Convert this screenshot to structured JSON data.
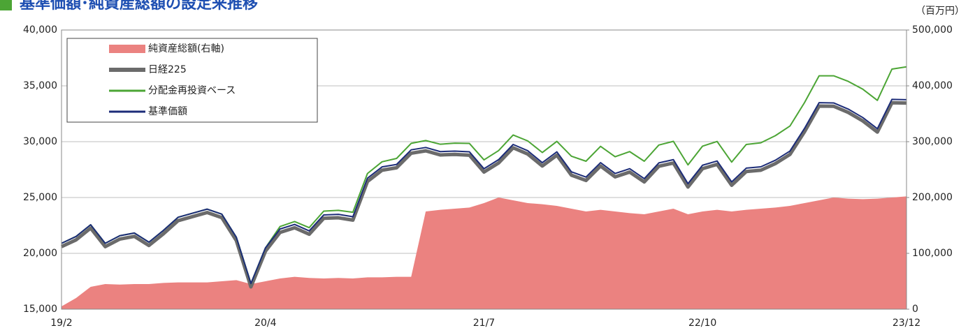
{
  "chart_data": {
    "type": "line",
    "title": "基準価額･純資産総額の設定来推移",
    "y2_label": "（百万円）",
    "categories": [
      "19/2",
      null,
      null,
      null,
      null,
      null,
      null,
      null,
      null,
      null,
      null,
      null,
      null,
      null,
      "20/4",
      null,
      null,
      null,
      null,
      null,
      null,
      null,
      null,
      null,
      null,
      null,
      null,
      null,
      null,
      "21/7",
      null,
      null,
      null,
      null,
      null,
      null,
      null,
      null,
      null,
      null,
      null,
      null,
      null,
      null,
      "22/10",
      null,
      null,
      null,
      null,
      null,
      null,
      null,
      null,
      null,
      null,
      null,
      null,
      null,
      "23/12"
    ],
    "ylim": [
      15000,
      40000
    ],
    "yticks": [
      {
        "value": 15000,
        "label": "15,000"
      },
      {
        "value": 20000,
        "label": "20,000"
      },
      {
        "value": 25000,
        "label": "25,000"
      },
      {
        "value": 30000,
        "label": "30,000"
      },
      {
        "value": 35000,
        "label": "35,000"
      },
      {
        "value": 40000,
        "label": "40,000"
      }
    ],
    "y2lim": [
      0,
      500000
    ],
    "y2ticks": [
      0,
      {
        "value": 100000,
        "label": "100,000"
      },
      {
        "value": 200000,
        "label": "200,000"
      },
      {
        "value": 300000,
        "label": "300,000"
      },
      {
        "value": 400000,
        "label": "400,000"
      },
      {
        "value": 500000,
        "label": "500,000"
      }
    ],
    "grid": true,
    "legend": "upper left",
    "series": [
      {
        "name": "純資産総額(右軸)",
        "type": "area",
        "axis": "y2",
        "color": "#eb8280",
        "values": [
          5000,
          20000,
          40000,
          45000,
          44000,
          45000,
          45000,
          47000,
          48000,
          48000,
          48000,
          50000,
          52000,
          45000,
          50000,
          55000,
          58000,
          56000,
          55000,
          56000,
          55000,
          57000,
          57000,
          58000,
          58000,
          175000,
          178000,
          180000,
          182000,
          190000,
          200000,
          195000,
          190000,
          188000,
          185000,
          180000,
          175000,
          178000,
          175000,
          172000,
          170000,
          175000,
          180000,
          170000,
          175000,
          178000,
          175000,
          178000,
          180000,
          182000,
          185000,
          190000,
          195000,
          200000,
          198000,
          197000,
          198000,
          200000,
          202000
        ]
      },
      {
        "name": "日経225",
        "color": "#6b6b6b",
        "width": 5,
        "values": [
          20600,
          21206,
          22259,
          20601,
          21276,
          21522,
          20704,
          21756,
          22927,
          23294,
          23657,
          23205,
          21143,
          17000,
          20194,
          21878,
          22288,
          21710,
          23140,
          23185,
          22977,
          26434,
          27444,
          27663,
          28966,
          29179,
          28813,
          28860,
          28792,
          27284,
          28090,
          29453,
          28893,
          27822,
          28792,
          27002,
          26527,
          27821,
          26848,
          27280,
          26393,
          27802,
          28092,
          25937,
          27587,
          27969,
          26095,
          27327,
          27446,
          28041,
          28856,
          30888,
          33189,
          33172,
          32619,
          31858,
          30859,
          33487,
          33464
        ]
      },
      {
        "name": "分配金再投資ベース",
        "color": "#4ca535",
        "width": 2,
        "values": [
          20900,
          21510,
          22560,
          20900,
          21580,
          21820,
          21000,
          22060,
          23230,
          23600,
          23960,
          23510,
          21440,
          17300,
          20490,
          22400,
          22850,
          22300,
          23780,
          23850,
          23680,
          27150,
          28200,
          28500,
          29850,
          30100,
          29770,
          29870,
          29840,
          28370,
          29200,
          30600,
          30070,
          29030,
          30030,
          28700,
          28250,
          29580,
          28650,
          29110,
          28250,
          29700,
          30030,
          27920,
          29600,
          30020,
          28170,
          29750,
          29900,
          30540,
          31400,
          33500,
          35900,
          35900,
          35400,
          34700,
          33700,
          36500,
          36700
        ]
      },
      {
        "name": "基準価額",
        "color": "#1c2c78",
        "width": 2,
        "values": [
          20900,
          21510,
          22560,
          20900,
          21580,
          21820,
          21000,
          22060,
          23230,
          23600,
          23960,
          23510,
          21440,
          17300,
          20490,
          22180,
          22590,
          22010,
          23440,
          23490,
          23280,
          26730,
          27740,
          27960,
          29270,
          29480,
          29110,
          29160,
          29090,
          27580,
          28390,
          29750,
          29190,
          28120,
          29090,
          27300,
          26830,
          28120,
          27150,
          27580,
          26690,
          28100,
          28390,
          26240,
          27890,
          28270,
          26400,
          27630,
          27750,
          28340,
          29160,
          31190,
          33490,
          33470,
          32920,
          32160,
          31160,
          33790,
          33760
        ]
      }
    ]
  }
}
